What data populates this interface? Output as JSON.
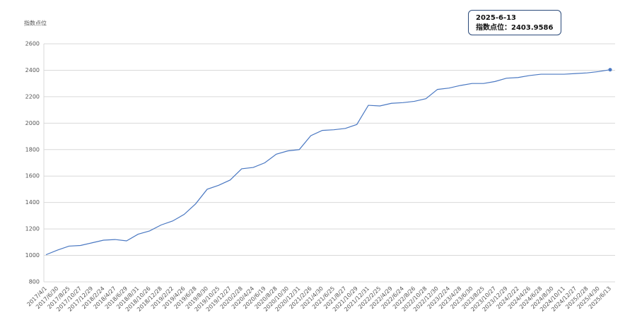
{
  "chart_data": {
    "type": "line",
    "y_label": "指数点位",
    "categories": [
      "2017/4/1",
      "2017/6/30",
      "2017/8/25",
      "2017/10/27",
      "2017/12/29",
      "2018/2/24",
      "2018/4/27",
      "2018/6/29",
      "2018/8/31",
      "2018/10/26",
      "2018/12/28",
      "2019/2/22",
      "2019/4/26",
      "2019/6/28",
      "2019/8/30",
      "2019/10/25",
      "2019/12/27",
      "2020/2/28",
      "2020/4/24",
      "2020/6/19",
      "2020/8/28",
      "2020/10/30",
      "2020/12/31",
      "2021/2/26",
      "2021/4/30",
      "2021/6/25",
      "2021/8/27",
      "2021/10/29",
      "2021/12/31",
      "2022/2/25",
      "2022/4/29",
      "2022/6/24",
      "2022/8/26",
      "2022/10/28",
      "2022/12/30",
      "2023/2/24",
      "2023/4/28",
      "2023/6/30",
      "2023/8/25",
      "2023/10/27",
      "2023/12/29",
      "2024/2/22",
      "2024/4/26",
      "2024/6/28",
      "2024/8/30",
      "2024/10/11",
      "2024/12/27",
      "2025/2/28",
      "2025/4/30",
      "2025/6/13"
    ],
    "series": [
      {
        "name": "指数点位",
        "color": "#4a78c2",
        "values": [
          1005,
          1040,
          1070,
          1075,
          1095,
          1115,
          1120,
          1110,
          1160,
          1185,
          1230,
          1260,
          1310,
          1390,
          1500,
          1530,
          1570,
          1655,
          1665,
          1700,
          1765,
          1790,
          1800,
          1905,
          1945,
          1950,
          1960,
          1990,
          2135,
          2130,
          2150,
          2155,
          2165,
          2185,
          2255,
          2265,
          2285,
          2300,
          2300,
          2315,
          2340,
          2345,
          2360,
          2370,
          2370,
          2370,
          2375,
          2380,
          2390,
          2403.9586
        ]
      }
    ],
    "ylim": [
      800,
      2600
    ],
    "yticks": [
      800,
      1000,
      1200,
      1400,
      1600,
      1800,
      2000,
      2200,
      2400,
      2600
    ],
    "grid": true,
    "tooltip": {
      "date": "2025-6-13",
      "label": "指数点位：",
      "value": 2403.9586
    }
  }
}
